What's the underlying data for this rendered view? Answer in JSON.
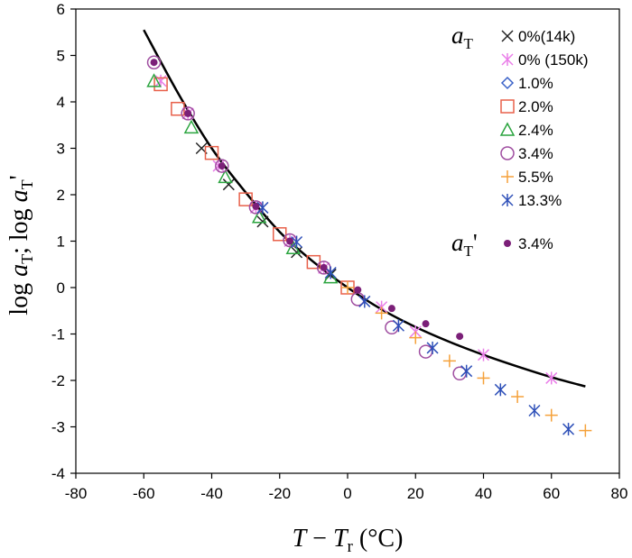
{
  "chart_data": {
    "type": "scatter",
    "xlabel": {
      "main": "T",
      "minus": " − ",
      "sub_main": "T",
      "sub": "r",
      "unit": " (°C)"
    },
    "ylabel": {
      "p1": "log ",
      "a1": "a",
      "s1": "T",
      "sep": "; log ",
      "a2": "a",
      "s2": "T",
      "prime": "'"
    },
    "xlim": [
      -80,
      80
    ],
    "ylim": [
      -4,
      6
    ],
    "xticks": [
      -80,
      -60,
      -40,
      -20,
      0,
      20,
      40,
      60,
      80
    ],
    "yticks": [
      -4,
      -3,
      -2,
      -1,
      0,
      1,
      2,
      3,
      4,
      5,
      6
    ],
    "grid": false,
    "legend_placement": "top-right",
    "legend_groups": [
      {
        "symbol": "a",
        "sub": "T",
        "prime": "",
        "series": [
          "s0",
          "s1",
          "s2",
          "s3",
          "s4",
          "s5",
          "s6",
          "s7"
        ]
      },
      {
        "symbol": "a",
        "sub": "T",
        "prime": "'",
        "series": [
          "s8"
        ]
      }
    ],
    "series": [
      {
        "id": "s0",
        "name": "0%(14k)",
        "marker": "x",
        "color": "#222222",
        "points": [
          [
            -43,
            3.0
          ],
          [
            -35,
            2.22
          ],
          [
            -25,
            1.42
          ],
          [
            -15,
            0.76
          ],
          [
            -5,
            0.28
          ]
        ]
      },
      {
        "id": "s1",
        "name": "0% (150k)",
        "marker": "asterisk",
        "color": "#e97de8",
        "points": [
          [
            -55,
            4.45
          ],
          [
            -47,
            3.75
          ],
          [
            -38,
            2.62
          ],
          [
            -27,
            1.72
          ],
          [
            -17,
            1.0
          ],
          [
            -7,
            0.42
          ],
          [
            10,
            -0.42
          ],
          [
            20,
            -0.95
          ],
          [
            40,
            -1.45
          ],
          [
            60,
            -1.95
          ]
        ]
      },
      {
        "id": "s2",
        "name": "1.0%",
        "marker": "diamond",
        "color": "#3a62c8",
        "points": []
      },
      {
        "id": "s3",
        "name": "2.0%",
        "marker": "square",
        "color": "#e8604a",
        "points": [
          [
            -55,
            4.38
          ],
          [
            -50,
            3.85
          ],
          [
            -40,
            2.9
          ],
          [
            -30,
            1.9
          ],
          [
            -20,
            1.15
          ],
          [
            -10,
            0.55
          ],
          [
            0,
            0.0
          ]
        ]
      },
      {
        "id": "s4",
        "name": "2.4%",
        "marker": "triangle",
        "color": "#2aa43e",
        "points": [
          [
            -57,
            4.45
          ],
          [
            -46,
            3.45
          ],
          [
            -36,
            2.38
          ],
          [
            -26,
            1.52
          ],
          [
            -16,
            0.85
          ],
          [
            -5,
            0.22
          ]
        ]
      },
      {
        "id": "s5",
        "name": "3.4%",
        "marker": "circle",
        "color": "#9f4da0",
        "points": [
          [
            -57,
            4.85
          ],
          [
            -47,
            3.75
          ],
          [
            -37,
            2.62
          ],
          [
            -27,
            1.73
          ],
          [
            -17,
            1.02
          ],
          [
            -7,
            0.43
          ],
          [
            3,
            -0.25
          ],
          [
            13,
            -0.86
          ],
          [
            23,
            -1.38
          ],
          [
            33,
            -1.85
          ]
        ]
      },
      {
        "id": "s6",
        "name": "5.5%",
        "marker": "plus",
        "color": "#f5a13a",
        "points": [
          [
            0,
            0.0
          ],
          [
            10,
            -0.55
          ],
          [
            20,
            -1.08
          ],
          [
            30,
            -1.58
          ],
          [
            40,
            -1.95
          ],
          [
            50,
            -2.35
          ],
          [
            60,
            -2.75
          ],
          [
            70,
            -3.08
          ]
        ]
      },
      {
        "id": "s7",
        "name": "13.3%",
        "marker": "asterisk",
        "color": "#2d4fb8",
        "points": [
          [
            -25,
            1.72
          ],
          [
            -15,
            0.98
          ],
          [
            -5,
            0.32
          ],
          [
            5,
            -0.3
          ],
          [
            15,
            -0.82
          ],
          [
            25,
            -1.3
          ],
          [
            35,
            -1.8
          ],
          [
            45,
            -2.2
          ],
          [
            55,
            -2.65
          ],
          [
            65,
            -3.05
          ]
        ]
      },
      {
        "id": "s8",
        "name": "3.4%",
        "marker": "dot",
        "color": "#7b1f78",
        "points": [
          [
            -57,
            4.85
          ],
          [
            -47,
            3.75
          ],
          [
            -37,
            2.62
          ],
          [
            -27,
            1.75
          ],
          [
            -17,
            1.0
          ],
          [
            -7,
            0.43
          ],
          [
            3,
            -0.05
          ],
          [
            13,
            -0.45
          ],
          [
            23,
            -0.78
          ],
          [
            33,
            -1.05
          ]
        ]
      }
    ],
    "fit_curve": {
      "color": "#000000",
      "points": [
        [
          -60,
          5.55
        ],
        [
          -50,
          4.2
        ],
        [
          -40,
          3.0
        ],
        [
          -30,
          2.05
        ],
        [
          -20,
          1.2
        ],
        [
          -10,
          0.55
        ],
        [
          0,
          0.0
        ],
        [
          10,
          -0.47
        ],
        [
          20,
          -0.85
        ],
        [
          30,
          -1.17
        ],
        [
          40,
          -1.45
        ],
        [
          50,
          -1.7
        ],
        [
          60,
          -1.93
        ],
        [
          70,
          -2.13
        ]
      ]
    }
  }
}
